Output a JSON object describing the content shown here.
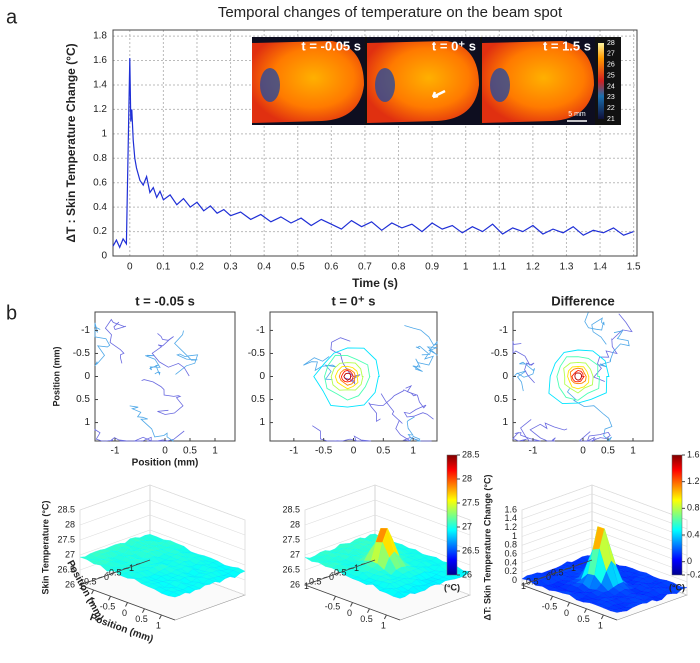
{
  "chart_data": [
    {
      "type": "line",
      "panel": "a",
      "title": "Temporal changes of temperature on the beam spot",
      "xlabel": "Time (s)",
      "ylabel": "ΔT : Skin Temperature Change (°C)",
      "x": [
        -0.05,
        -0.04,
        -0.03,
        -0.02,
        -0.01,
        0,
        0.003,
        0.006,
        0.01,
        0.015,
        0.02,
        0.03,
        0.04,
        0.05,
        0.06,
        0.07,
        0.08,
        0.09,
        0.1,
        0.12,
        0.14,
        0.16,
        0.18,
        0.2,
        0.22,
        0.24,
        0.26,
        0.28,
        0.3,
        0.33,
        0.36,
        0.39,
        0.42,
        0.45,
        0.48,
        0.51,
        0.54,
        0.57,
        0.6,
        0.63,
        0.66,
        0.69,
        0.72,
        0.75,
        0.78,
        0.81,
        0.84,
        0.87,
        0.9,
        0.93,
        0.96,
        0.99,
        1.02,
        1.05,
        1.08,
        1.11,
        1.14,
        1.17,
        1.2,
        1.23,
        1.26,
        1.29,
        1.32,
        1.35,
        1.38,
        1.41,
        1.44,
        1.47,
        1.5
      ],
      "series": [
        {
          "color": "#1f2fd6",
          "values": [
            0.08,
            0.13,
            0.07,
            0.14,
            0.1,
            1.62,
            1.1,
            1.2,
            0.95,
            0.8,
            0.72,
            0.62,
            0.58,
            0.65,
            0.52,
            0.56,
            0.48,
            0.53,
            0.46,
            0.5,
            0.42,
            0.47,
            0.4,
            0.44,
            0.37,
            0.41,
            0.35,
            0.38,
            0.33,
            0.36,
            0.3,
            0.34,
            0.28,
            0.32,
            0.27,
            0.31,
            0.25,
            0.3,
            0.26,
            0.22,
            0.29,
            0.24,
            0.28,
            0.21,
            0.27,
            0.23,
            0.26,
            0.2,
            0.27,
            0.22,
            0.25,
            0.19,
            0.24,
            0.2,
            0.26,
            0.18,
            0.23,
            0.2,
            0.25,
            0.18,
            0.22,
            0.19,
            0.24,
            0.17,
            0.21,
            0.19,
            0.23,
            0.17,
            0.2
          ]
        }
      ],
      "xlim": [
        -0.05,
        1.51
      ],
      "xticks": [
        0,
        0.1,
        0.2,
        0.3,
        0.4,
        0.5,
        0.6,
        0.7,
        0.8,
        0.9,
        1,
        1.1,
        1.2,
        1.3,
        1.4,
        1.5
      ],
      "ylim": [
        0,
        1.85
      ],
      "yticks": [
        0,
        0.2,
        0.4,
        0.6,
        0.8,
        1,
        1.2,
        1.4,
        1.6,
        1.8
      ],
      "grid": true,
      "inset": {
        "frames": [
          "t = -0.05 s",
          "t = 0⁺ s",
          "t = 1.5 s"
        ],
        "colorbar_ticks": [
          21,
          22,
          23,
          24,
          25,
          26,
          27,
          28
        ],
        "scale_label": "5 mm"
      }
    },
    {
      "type": "contour",
      "panel": "b",
      "title": "t = -0.05 s",
      "xlabel": "Position (mm)",
      "ylabel": "Position (mm)",
      "xlim": [
        -1.4,
        1.4
      ],
      "ylim": [
        -1.4,
        1.4
      ],
      "xticks": [
        -1,
        0,
        0.5,
        1
      ],
      "yticks": [
        -1,
        -0.5,
        0,
        0.5,
        1
      ]
    },
    {
      "type": "contour",
      "title": "t = 0⁺ s",
      "xlim": [
        -1.4,
        1.4
      ],
      "ylim": [
        -1.4,
        1.4
      ],
      "xticks": [
        -1,
        -0.5,
        0,
        0.5,
        1
      ],
      "yticks": [
        -1,
        -0.5,
        0,
        0.5,
        1
      ]
    },
    {
      "type": "contour",
      "title": "Difference",
      "xlim": [
        -1.4,
        1.4
      ],
      "ylim": [
        -1.4,
        1.4
      ],
      "xticks": [
        -1,
        0,
        0.5,
        1
      ],
      "yticks": [
        -1,
        -0.5,
        0,
        0.5,
        1
      ]
    },
    {
      "type": "surface",
      "zlabel": "Skin Temperature (°C)",
      "xlabel": "Position (mm)",
      "ylabel": "Position (mm)",
      "xlim": [
        -1.4,
        1.4
      ],
      "ylim": [
        -1.4,
        1.4
      ],
      "zlim": [
        26,
        28.5
      ],
      "xticks": [
        -1,
        -0.5,
        0,
        0.5,
        1
      ],
      "yticks": [
        -1,
        -0.5,
        0,
        0.5,
        1
      ],
      "zticks": [
        26,
        26.5,
        27,
        27.5,
        28,
        28.5
      ]
    },
    {
      "type": "surface",
      "xlim": [
        -1.4,
        1.4
      ],
      "ylim": [
        -1.4,
        1.4
      ],
      "zlim": [
        26,
        28.5
      ],
      "xticks": [
        -0.5,
        0,
        0.5,
        1
      ],
      "yticks": [
        -1,
        -0.5,
        0,
        0.5,
        1
      ],
      "zticks": [
        26,
        26.5,
        27,
        27.5,
        28,
        28.5
      ],
      "colorbar": {
        "lim": [
          26,
          28.5
        ],
        "ticks": [
          26,
          26.5,
          27,
          27.5,
          28,
          28.5
        ],
        "label": "(°C)"
      }
    },
    {
      "type": "surface",
      "zlabel": "ΔT: Skin Temperature Change (°C)",
      "xlim": [
        -1.4,
        1.4
      ],
      "ylim": [
        -1.4,
        1.4
      ],
      "zlim": [
        -0.1,
        1.6
      ],
      "xticks": [
        -0.5,
        0,
        0.5,
        1
      ],
      "yticks": [
        -1,
        -0.5,
        0,
        0.5,
        1
      ],
      "zticks": [
        0,
        0.2,
        0.4,
        0.6,
        0.8,
        1,
        1.2,
        1.4,
        1.6
      ],
      "colorbar": {
        "lim": [
          -0.2,
          1.6
        ],
        "ticks": [
          -0.2,
          0,
          0.4,
          0.8,
          1.2,
          1.6
        ],
        "label": "(°C)"
      }
    }
  ]
}
